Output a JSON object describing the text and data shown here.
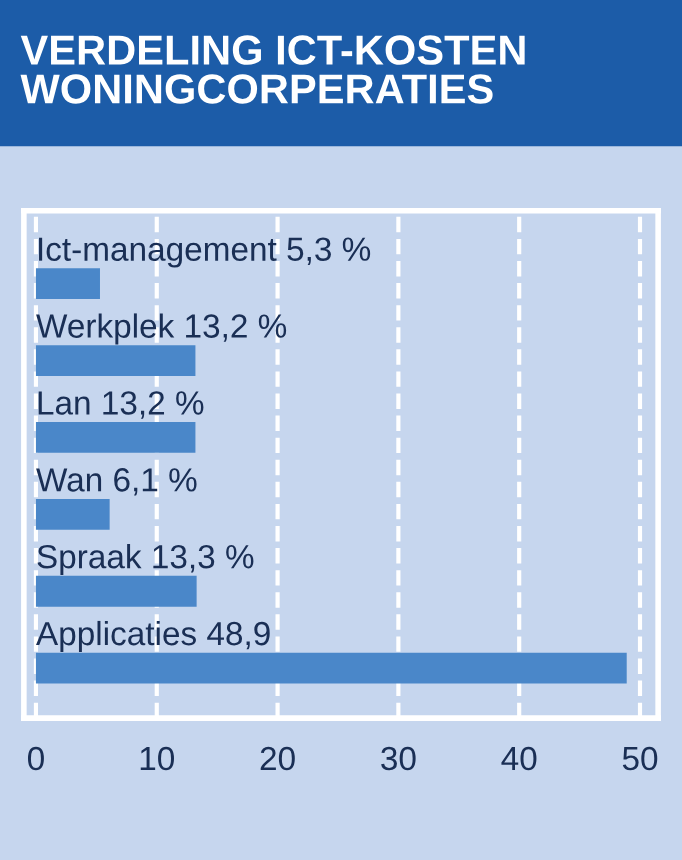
{
  "chart_data": {
    "type": "bar",
    "orientation": "horizontal",
    "title": "VERDELING ICT-KOSTEN\nWONINGCORPERATIES",
    "categories": [
      "Ict-management",
      "Werkplek",
      "Lan",
      "Wan",
      "Spraak",
      "Applicaties"
    ],
    "values": [
      5.3,
      13.2,
      13.2,
      6.1,
      13.3,
      48.9
    ],
    "value_labels": [
      "5,3 %",
      "13,2 %",
      "13,2 %",
      "6,1 %",
      "13,3 %",
      "48,9"
    ],
    "color": "#4a87c9",
    "xlim": [
      -1,
      51.5
    ],
    "xticks": [
      0,
      10,
      20,
      30,
      40,
      50
    ],
    "grid": "x",
    "legend": false
  }
}
